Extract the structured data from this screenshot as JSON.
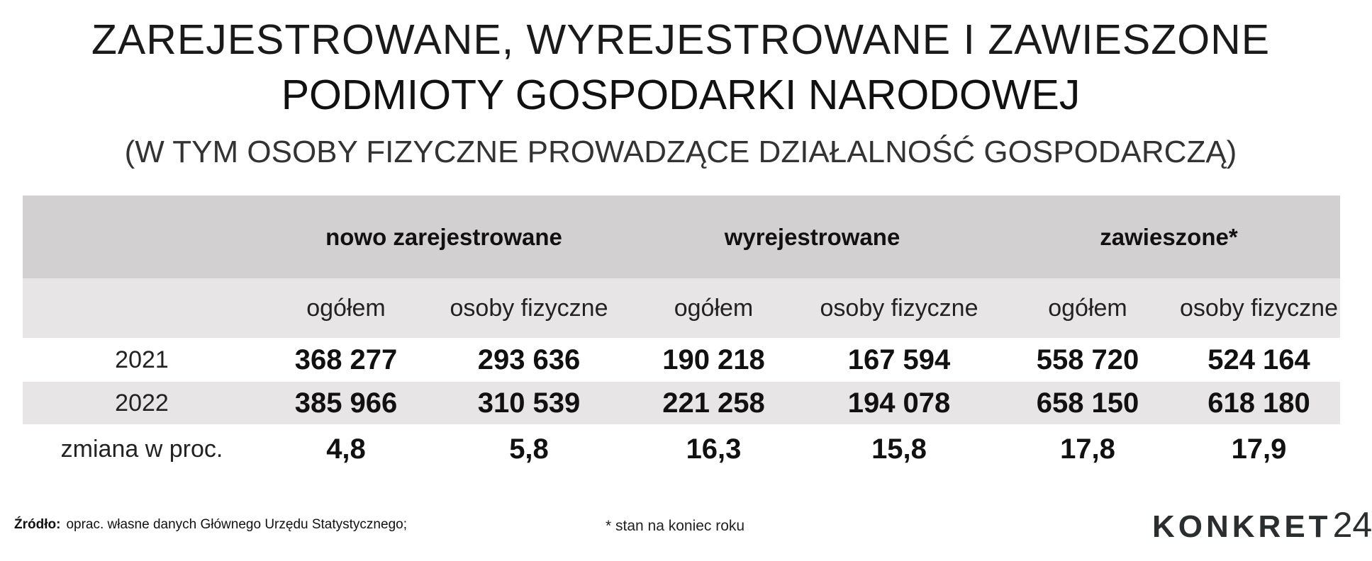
{
  "header": {
    "line1": "ZAREJESTROWANE, WYREJESTROWANE I ZAWIESZONE",
    "line2": "PODMIOTY GOSPODARKI NARODOWEJ",
    "line3": "(W TYM OSOBY FIZYCZNE PROWADZĄCE DZIAŁALNOŚĆ GOSPODARCZĄ)"
  },
  "table": {
    "groups": [
      "nowo zarejestrowane",
      "wyrejestrowane",
      "zawieszone*"
    ],
    "subheaders": [
      "ogółem",
      "osoby fizyczne",
      "ogółem",
      "osoby fizyczne",
      "ogółem",
      "osoby fizyczne"
    ],
    "rows": [
      {
        "label": "2021",
        "values": [
          "368 277",
          "293 636",
          "190 218",
          "167 594",
          "558 720",
          "524 164"
        ]
      },
      {
        "label": "2022",
        "values": [
          "385 966",
          "310 539",
          "221 258",
          "194 078",
          "658 150",
          "618 180"
        ]
      },
      {
        "label": "zmiana w proc.",
        "values": [
          "4,8",
          "5,8",
          "16,3",
          "15,8",
          "17,8",
          "17,9"
        ]
      }
    ]
  },
  "footer": {
    "source_label": "Źródło:",
    "source_text": "oprac. własne danych Głównego Urzędu Statystycznego;",
    "note": "* stan na koniec roku",
    "logo_text": "KONKRET",
    "logo_number": "24"
  },
  "colors": {
    "group_header_bg": "#d3d0d1",
    "stripe_bg": "#e7e5e6",
    "text": "#111111",
    "logo": "#2a2e2e"
  }
}
